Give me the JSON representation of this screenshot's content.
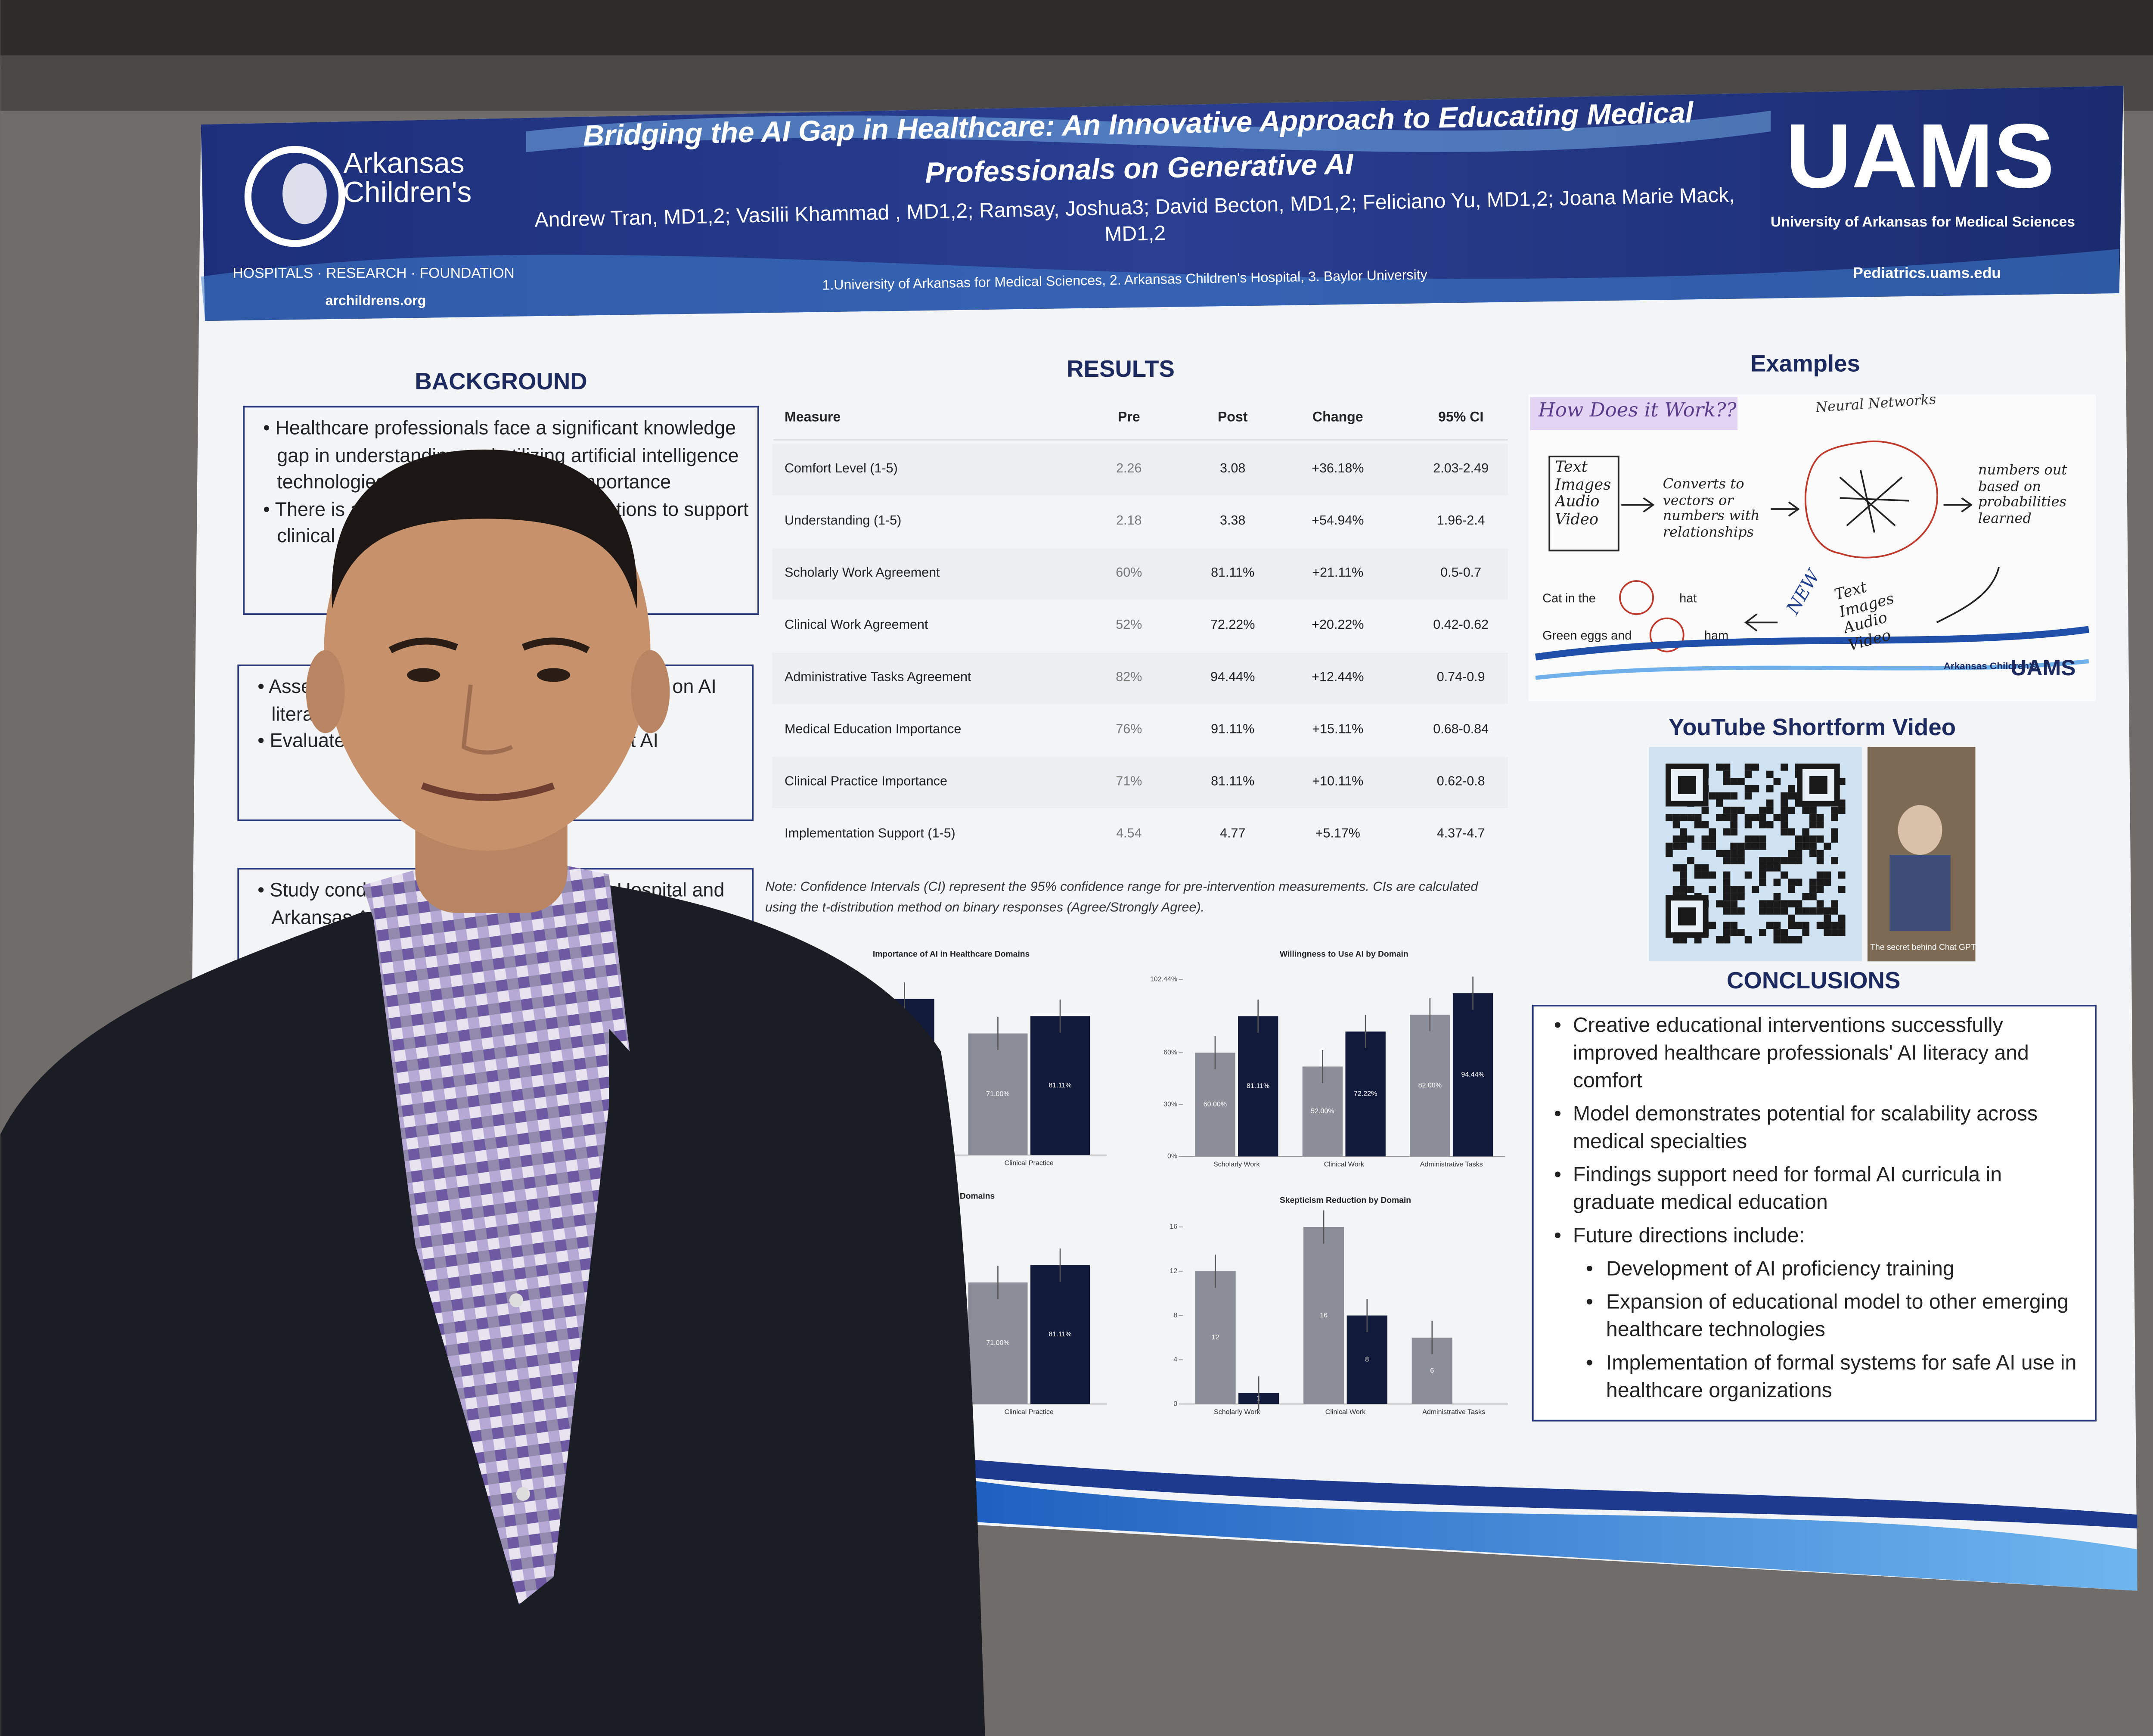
{
  "header": {
    "org_left": "Arkansas Children's",
    "org_left_tagline": "HOSPITALS · RESEARCH · FOUNDATION",
    "org_left_url": "archildrens.org",
    "title": "Bridging the AI Gap in Healthcare: An Innovative Approach to Educating Medical Professionals on Generative AI",
    "authors": "Andrew Tran, MD1,2; Vasilii Khammad , MD1,2; Ramsay, Joshua3; David Becton, MD1,2; Feliciano Yu, MD1,2; Joana Marie Mack, MD1,2",
    "affiliations": "1.University of Arkansas for Medical Sciences, 2. Arkansas Children's Hospital, 3. Baylor University",
    "org_right": "UAMS",
    "org_right_name": "University of Arkansas for Medical Sciences",
    "org_right_url": "Pediatrics.uams.edu"
  },
  "background": {
    "title": "BACKGROUND",
    "bullets": [
      "Healthcare professionals face a significant knowledge gap in understanding and utilizing artificial intelligence technologies despite their growing importance",
      "There is a need for educational interventions to support clinical practice"
    ]
  },
  "objectives": {
    "bullets": [
      "Assess the impact of educational interventions on AI literacy",
      "Evaluate attitudes and willingness to adopt AI"
    ]
  },
  "methods": {
    "bullets": [
      "Study conducted at Arkansas Children's Hospital and Arkansas Academy of Pediatrics"
    ]
  },
  "results": {
    "title": "RESULTS",
    "columns": [
      "Measure",
      "Pre",
      "Post",
      "Change",
      "95% CI"
    ],
    "rows": [
      [
        "Comfort Level (1-5)",
        "2.26",
        "3.08",
        "+36.18%",
        "2.03-2.49"
      ],
      [
        "Understanding (1-5)",
        "2.18",
        "3.38",
        "+54.94%",
        "1.96-2.4"
      ],
      [
        "Scholarly Work Agreement",
        "60%",
        "81.11%",
        "+21.11%",
        "0.5-0.7"
      ],
      [
        "Clinical Work Agreement",
        "52%",
        "72.22%",
        "+20.22%",
        "0.42-0.62"
      ],
      [
        "Administrative Tasks Agreement",
        "82%",
        "94.44%",
        "+12.44%",
        "0.74-0.9"
      ],
      [
        "Medical Education Importance",
        "76%",
        "91.11%",
        "+15.11%",
        "0.68-0.84"
      ],
      [
        "Clinical Practice Importance",
        "71%",
        "81.11%",
        "+10.11%",
        "0.62-0.8"
      ],
      [
        "Implementation Support (1-5)",
        "4.54",
        "4.77",
        "+5.17%",
        "4.37-4.7"
      ]
    ],
    "note": "Note: Confidence Intervals (CI) represent the 95% confidence range for pre-intervention measurements. CIs are calculated using the t-distribution method on binary responses (Agree/Strongly Agree)."
  },
  "charts": [
    {
      "type": "bar",
      "title": "Importance of AI in Healthcare Domains",
      "categories": [
        null,
        "Clinical Practice"
      ],
      "ylim": [
        0,
        105
      ],
      "series": [
        {
          "color": "#8b8e98",
          "values": [
            null,
            71
          ],
          "value_labels": [
            null,
            "71.00%"
          ]
        },
        {
          "color": "#121a3b",
          "values": [
            91.11,
            81.11
          ],
          "value_labels": [
            "91.11%",
            "81.11%"
          ]
        }
      ]
    },
    {
      "type": "bar",
      "title": "Willingness to Use AI by Domain",
      "categories": [
        "Scholarly Work",
        "Clinical Work",
        "Administrative Tasks"
      ],
      "ylim": [
        0,
        102.44
      ],
      "yticks": [
        {
          "value": 0,
          "label": "0%"
        },
        {
          "value": 30,
          "label": "30%"
        },
        {
          "value": 60,
          "label": "60%"
        },
        {
          "value": 102.44,
          "label": "102.44%"
        }
      ],
      "series": [
        {
          "color": "#8b8e98",
          "values": [
            60,
            52,
            82
          ],
          "value_labels": [
            "60.00%",
            "52.00%",
            "82.00%"
          ]
        },
        {
          "color": "#121a3b",
          "values": [
            81.11,
            72.22,
            94.44
          ],
          "value_labels": [
            "81.11%",
            "72.22%",
            "94.44%"
          ]
        }
      ]
    },
    {
      "type": "bar",
      "title": "n Healthcare Domains",
      "categories": [
        null,
        "Clinical Practice"
      ],
      "ylim": [
        0,
        105
      ],
      "series": [
        {
          "color": "#8b8e98",
          "values": [
            null,
            71
          ],
          "value_labels": [
            null,
            "71.00%"
          ]
        },
        {
          "color": "#121a3b",
          "values": [
            null,
            81.11
          ],
          "value_labels": [
            null,
            "81.11%"
          ]
        }
      ]
    },
    {
      "type": "bar",
      "title": "Skepticism Reduction by Domain",
      "categories": [
        "Scholarly Work",
        "Clinical Work",
        "Administrative Tasks"
      ],
      "ylim": [
        0,
        16
      ],
      "yticks": [
        0,
        4,
        8,
        12,
        16
      ],
      "series": [
        {
          "color": "#8b8e98",
          "values": [
            12,
            16,
            6
          ]
        },
        {
          "color": "#121a3b",
          "values": [
            1,
            8,
            null
          ]
        }
      ]
    }
  ],
  "examples": {
    "title": "Examples",
    "sketch": {
      "heading": "How Does it Work??",
      "network": "Neural Networks",
      "inputs": "Text Images Audio Video",
      "converts": "Converts to vectors or numbers with relationships",
      "output": "numbers out based on probabilities learned",
      "prompt1": "Cat in the",
      "answer1": "hat",
      "prompt2": "Green eggs and",
      "answer2": "ham",
      "new": "NEW",
      "outputs": "Text Images Audio Video",
      "logo1": "Arkansas Children's",
      "logo2": "UAMS"
    },
    "video_title": "YouTube Shortform Video",
    "video_caption": "The secret behind Chat GPT"
  },
  "conclusions": {
    "title": "CONCLUSIONS",
    "items": [
      {
        "text": "Creative educational interventions successfully improved healthcare professionals' AI literacy and comfort"
      },
      {
        "text": "Model demonstrates potential for scalability across medical specialties"
      },
      {
        "text": "Findings support need for formal AI curricula in graduate medical education"
      },
      {
        "text": "Future directions include:",
        "sub": [
          "Development of AI proficiency training",
          "Expansion of educational model to other emerging healthcare technologies",
          "Implementation of formal systems for safe AI use in healthcare organizations"
        ]
      }
    ]
  }
}
